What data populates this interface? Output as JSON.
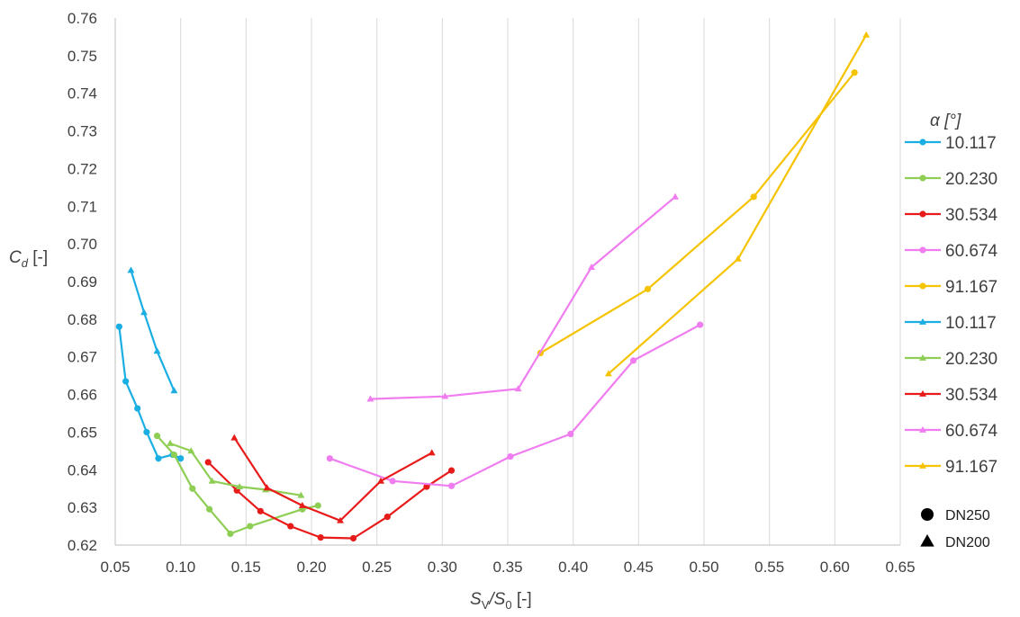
{
  "chart_data": {
    "type": "line",
    "xlabel_main": "S",
    "xlabel_sub1": "V",
    "xlabel_sep": "/S",
    "xlabel_sub2": "0",
    "xlabel_unit": " [-]",
    "ylabel_main": "C",
    "ylabel_sub": "d",
    "ylabel_unit": " [-]",
    "xlim": [
      0.05,
      0.65
    ],
    "ylim": [
      0.62,
      0.76
    ],
    "xticks": [
      "0.05",
      "0.10",
      "0.15",
      "0.20",
      "0.25",
      "0.30",
      "0.35",
      "0.40",
      "0.45",
      "0.50",
      "0.55",
      "0.60",
      "0.65"
    ],
    "yticks": [
      "0.62",
      "0.63",
      "0.64",
      "0.65",
      "0.66",
      "0.67",
      "0.68",
      "0.69",
      "0.70",
      "0.71",
      "0.72",
      "0.73",
      "0.74",
      "0.75",
      "0.76"
    ],
    "grid": "vertical",
    "legend": {
      "title": "α [°]",
      "placement": "right",
      "markers": [
        {
          "shape": "circle",
          "label": "DN250"
        },
        {
          "shape": "triangle",
          "label": "DN200"
        }
      ]
    },
    "series": [
      {
        "name": "10.117",
        "marker": "circle",
        "color": "#1aaee3",
        "x": [
          0.053,
          0.058,
          0.067,
          0.074,
          0.083,
          0.094,
          0.1
        ],
        "y": [
          0.678,
          0.6635,
          0.6563,
          0.65,
          0.643,
          0.644,
          0.643
        ]
      },
      {
        "name": "20.230",
        "marker": "circle",
        "color": "#8fce55",
        "x": [
          0.082,
          0.095,
          0.109,
          0.122,
          0.138,
          0.153,
          0.193,
          0.205
        ],
        "y": [
          0.649,
          0.644,
          0.635,
          0.6295,
          0.623,
          0.625,
          0.6295,
          0.6305
        ]
      },
      {
        "name": "30.534",
        "marker": "circle",
        "color": "#e81b1b",
        "x": [
          0.121,
          0.143,
          0.161,
          0.184,
          0.207,
          0.232,
          0.258,
          0.288,
          0.307
        ],
        "y": [
          0.642,
          0.6345,
          0.629,
          0.625,
          0.622,
          0.6218,
          0.6275,
          0.6355,
          0.6398
        ]
      },
      {
        "name": "60.674",
        "marker": "circle",
        "color": "#f07df0",
        "x": [
          0.214,
          0.262,
          0.307,
          0.352,
          0.398,
          0.446,
          0.497
        ],
        "y": [
          0.643,
          0.637,
          0.6357,
          0.6435,
          0.6495,
          0.669,
          0.6785
        ]
      },
      {
        "name": "91.167",
        "marker": "circle",
        "color": "#f5c300",
        "x": [
          0.375,
          0.457,
          0.538,
          0.615
        ],
        "y": [
          0.671,
          0.688,
          0.7125,
          0.7455
        ]
      },
      {
        "name": "10.117",
        "marker": "triangle",
        "color": "#1aaee3",
        "x": [
          0.062,
          0.072,
          0.082,
          0.095
        ],
        "y": [
          0.693,
          0.6818,
          0.6715,
          0.661
        ]
      },
      {
        "name": "20.230",
        "marker": "triangle",
        "color": "#8fce55",
        "x": [
          0.092,
          0.108,
          0.124,
          0.145,
          0.165,
          0.192
        ],
        "y": [
          0.647,
          0.645,
          0.637,
          0.6355,
          0.6347,
          0.6332
        ]
      },
      {
        "name": "30.534",
        "marker": "triangle",
        "color": "#e81b1b",
        "x": [
          0.141,
          0.166,
          0.193,
          0.222,
          0.253,
          0.292
        ],
        "y": [
          0.6485,
          0.6352,
          0.6305,
          0.6265,
          0.637,
          0.6445
        ]
      },
      {
        "name": "60.674",
        "marker": "triangle",
        "color": "#f07df0",
        "x": [
          0.245,
          0.302,
          0.358,
          0.414,
          0.478
        ],
        "y": [
          0.6588,
          0.6595,
          0.6615,
          0.6938,
          0.7125
        ]
      },
      {
        "name": "91.167",
        "marker": "triangle",
        "color": "#f5c300",
        "x": [
          0.427,
          0.526,
          0.624
        ],
        "y": [
          0.6655,
          0.696,
          0.7555
        ]
      }
    ]
  }
}
